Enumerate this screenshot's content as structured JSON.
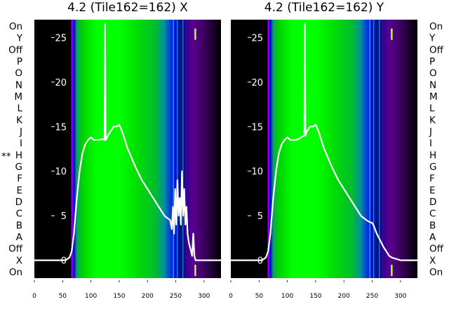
{
  "figure": {
    "panels": [
      {
        "title": "4.2 (Tile162=162) X",
        "marker": "**"
      },
      {
        "title": "4.2 (Tile162=162) Y",
        "marker": ""
      }
    ],
    "row_labels": [
      "On",
      "Y",
      "Off",
      "P",
      "O",
      "N",
      "M",
      "L",
      "K",
      "J",
      "I",
      "H",
      "G",
      "F",
      "E",
      "D",
      "C",
      "B",
      "A",
      "Off",
      "X",
      "On"
    ]
  },
  "colors": {
    "trace": "#ffffff",
    "background": "#000000"
  },
  "chart_data": [
    {
      "type": "line",
      "title": "4.2 (Tile162=162) X",
      "xlim": [
        0,
        330
      ],
      "ylim": [
        -2,
        27
      ],
      "x_ticks": [
        0,
        50,
        100,
        150,
        200,
        250,
        300
      ],
      "y_ticks": [
        0,
        5,
        10,
        15,
        20,
        25
      ],
      "grid": false,
      "background_spectrum": [
        {
          "x": 0,
          "color": "#000000"
        },
        {
          "x": 64,
          "color": "#000000"
        },
        {
          "x": 66,
          "color": "#7a00cf"
        },
        {
          "x": 70,
          "color": "#0000e0"
        },
        {
          "x": 75,
          "color": "#0fa060"
        },
        {
          "x": 85,
          "color": "#00d400"
        },
        {
          "x": 110,
          "color": "#00ff00"
        },
        {
          "x": 150,
          "color": "#00ff00"
        },
        {
          "x": 180,
          "color": "#00e000"
        },
        {
          "x": 215,
          "color": "#00bb30"
        },
        {
          "x": 230,
          "color": "#0090a0"
        },
        {
          "x": 245,
          "color": "#0018f0"
        },
        {
          "x": 258,
          "color": "#001090"
        },
        {
          "x": 268,
          "color": "#2a0090"
        },
        {
          "x": 280,
          "color": "#5a0090"
        },
        {
          "x": 300,
          "color": "#3c0060"
        },
        {
          "x": 320,
          "color": "#140020"
        },
        {
          "x": 330,
          "color": "#000000"
        }
      ],
      "series": [
        {
          "x": [
            0,
            40,
            55,
            62,
            66,
            70,
            75,
            80,
            85,
            90,
            95,
            100,
            105,
            110,
            115,
            120,
            124,
            125,
            126,
            128,
            130,
            132,
            134,
            136,
            138,
            140,
            145,
            150,
            155,
            160,
            165,
            170,
            175,
            180,
            190,
            200,
            210,
            220,
            230,
            240,
            243,
            245,
            247,
            249,
            250,
            251,
            253,
            255,
            257,
            259,
            261,
            263,
            265,
            267,
            269,
            271,
            273,
            275,
            277,
            279,
            281,
            283,
            285,
            290,
            300,
            310,
            320,
            330
          ],
          "y": [
            0,
            0,
            0,
            0.3,
            1,
            3,
            7,
            10,
            12,
            13,
            13.5,
            13.8,
            13.5,
            13.5,
            13.5,
            13.6,
            13.5,
            26.5,
            13.5,
            13.7,
            14,
            14.2,
            14.4,
            14.6,
            14.8,
            15,
            15,
            15.2,
            14.5,
            13.5,
            12.5,
            11.8,
            11,
            10.3,
            9,
            8,
            7,
            6,
            5,
            4.5,
            3.5,
            6,
            3,
            8,
            5.5,
            4,
            9,
            5,
            7,
            4,
            10,
            5,
            8,
            4,
            6,
            3,
            2,
            1.5,
            1,
            0.5,
            3,
            0.5,
            0,
            0,
            0,
            0,
            0,
            0
          ]
        }
      ]
    },
    {
      "type": "line",
      "title": "4.2 (Tile162=162) Y",
      "xlim": [
        0,
        330
      ],
      "ylim": [
        -2,
        27
      ],
      "x_ticks": [
        0,
        50,
        100,
        150,
        200,
        250,
        300
      ],
      "y_ticks": [
        0,
        5,
        10,
        15,
        20,
        25
      ],
      "grid": false,
      "background_spectrum": [
        {
          "x": 0,
          "color": "#000000"
        },
        {
          "x": 64,
          "color": "#000000"
        },
        {
          "x": 66,
          "color": "#7a00cf"
        },
        {
          "x": 70,
          "color": "#0000e0"
        },
        {
          "x": 75,
          "color": "#0fa060"
        },
        {
          "x": 85,
          "color": "#00d400"
        },
        {
          "x": 110,
          "color": "#00ff00"
        },
        {
          "x": 150,
          "color": "#00ff00"
        },
        {
          "x": 180,
          "color": "#00e000"
        },
        {
          "x": 215,
          "color": "#00bb30"
        },
        {
          "x": 230,
          "color": "#0090a0"
        },
        {
          "x": 245,
          "color": "#0018f0"
        },
        {
          "x": 258,
          "color": "#001090"
        },
        {
          "x": 268,
          "color": "#2a0090"
        },
        {
          "x": 280,
          "color": "#5a0090"
        },
        {
          "x": 300,
          "color": "#3c0060"
        },
        {
          "x": 320,
          "color": "#140020"
        },
        {
          "x": 330,
          "color": "#000000"
        }
      ],
      "series": [
        {
          "x": [
            0,
            40,
            55,
            62,
            66,
            70,
            75,
            80,
            85,
            90,
            95,
            100,
            105,
            110,
            115,
            120,
            124,
            130,
            131,
            132,
            134,
            136,
            138,
            140,
            145,
            150,
            155,
            160,
            165,
            170,
            175,
            180,
            190,
            200,
            210,
            220,
            230,
            240,
            245,
            250,
            252,
            255,
            258,
            262,
            266,
            270,
            275,
            280,
            285,
            290,
            300,
            310,
            320,
            330
          ],
          "y": [
            0,
            0,
            0,
            0.3,
            1,
            3,
            7,
            10,
            12,
            13,
            13.5,
            13.8,
            13.5,
            13.5,
            13.5,
            13.6,
            13.8,
            14,
            26.5,
            14,
            14.4,
            14.6,
            14.8,
            15,
            15,
            15.2,
            14.5,
            13.5,
            12.5,
            11.8,
            11,
            10.3,
            9,
            8,
            7,
            6,
            5,
            4.5,
            4.3,
            4.2,
            4,
            3.5,
            3,
            2.5,
            2,
            1.5,
            1,
            0.5,
            0.3,
            0.2,
            0,
            0,
            0,
            0
          ]
        }
      ]
    }
  ]
}
